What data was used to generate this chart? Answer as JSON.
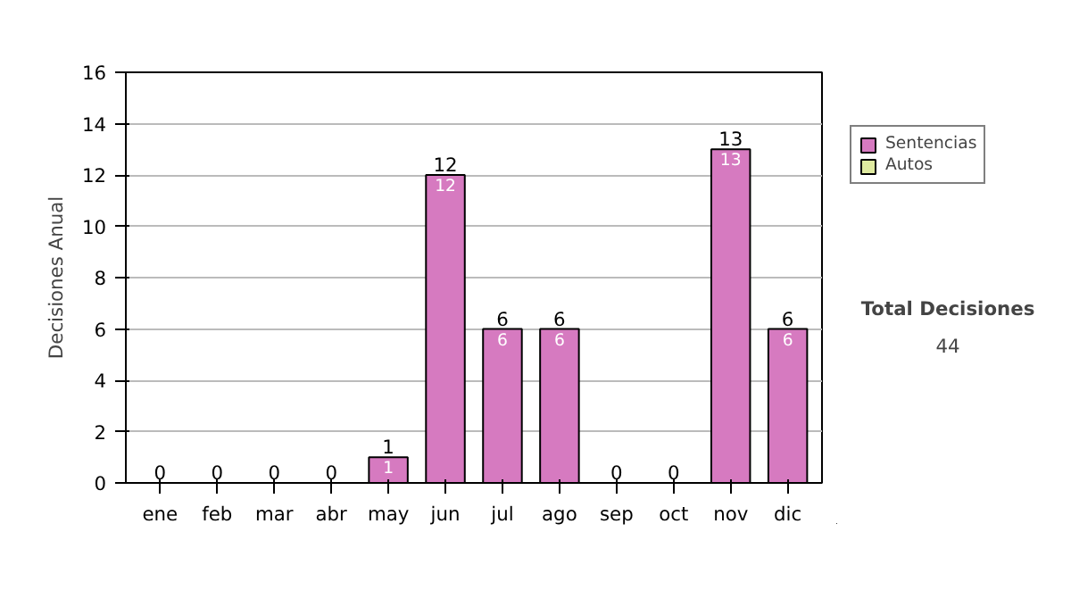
{
  "chart_data": {
    "type": "bar",
    "stacked": true,
    "ylabel": "Decisiones Anual",
    "categories": [
      "ene",
      "feb",
      "mar",
      "abr",
      "may",
      "jun",
      "jul",
      "ago",
      "sep",
      "oct",
      "nov",
      "dic"
    ],
    "series": [
      {
        "name": "Sentencias",
        "color": "#d67ac0",
        "values": [
          0,
          0,
          0,
          0,
          1,
          12,
          6,
          6,
          0,
          0,
          13,
          6
        ],
        "value_labels": [
          null,
          null,
          null,
          null,
          "1",
          "12",
          "6",
          "6",
          null,
          null,
          "13",
          "6"
        ]
      },
      {
        "name": "Autos",
        "color": "#dfeaa0",
        "values": [
          0,
          0,
          0,
          0,
          0,
          0,
          0,
          0,
          0,
          0,
          0,
          0
        ]
      }
    ],
    "totals": [
      "0",
      "0",
      "0",
      "0",
      "1",
      "12",
      "6",
      "6",
      "0",
      "0",
      "13",
      "6"
    ],
    "ylim": [
      0,
      16
    ],
    "yticks": [
      0,
      2,
      4,
      6,
      8,
      10,
      12,
      14,
      16
    ],
    "grid": "y",
    "legend": "right",
    "annotations": [
      "Total Decisiones",
      "44"
    ]
  }
}
